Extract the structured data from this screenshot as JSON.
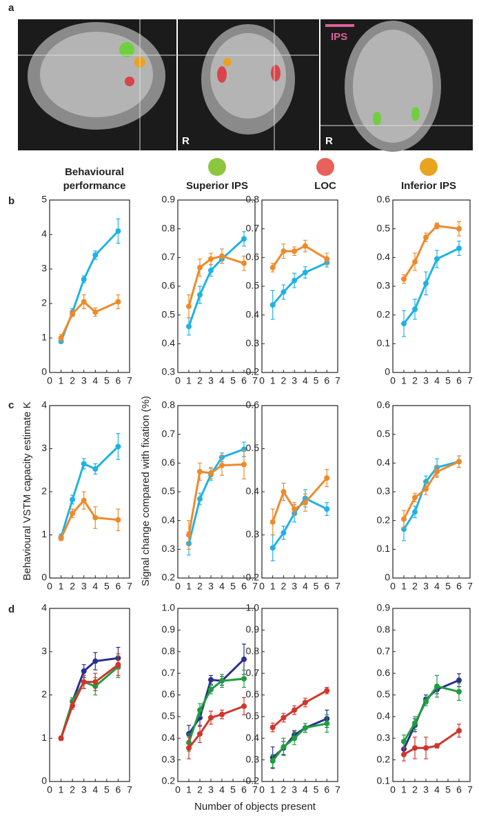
{
  "panel_labels": [
    "a",
    "b",
    "c",
    "d"
  ],
  "brain_labels": {
    "coronal": "R",
    "axial": "R",
    "ips": "IPS"
  },
  "column_headers": [
    "Behavioural\nperformance",
    "Superior IPS",
    "LOC",
    "Inferior IPS"
  ],
  "y_axis_labels": [
    "Behavioural VSTM capacity estimate K",
    "Signal change compared with fixation (%)"
  ],
  "x_axis_label": "Number of objects present",
  "chart_data": [
    {
      "type": "line",
      "x": [
        1,
        2,
        3,
        4,
        6
      ],
      "xlim": [
        0,
        7
      ],
      "xticks": [
        0,
        1,
        2,
        3,
        4,
        5,
        6,
        7
      ],
      "ylim": [
        0,
        5
      ],
      "yticks": [
        0,
        1,
        2,
        3,
        4,
        5
      ],
      "series": [
        {
          "color": "#1fb2e6",
          "values": [
            0.9,
            1.75,
            2.7,
            3.4,
            4.1
          ],
          "errors": [
            0.05,
            0.1,
            0.1,
            0.12,
            0.35
          ]
        },
        {
          "color": "#ee8a2a",
          "values": [
            1.0,
            1.7,
            2.05,
            1.75,
            2.05
          ],
          "errors": [
            0.1,
            0.08,
            0.2,
            0.12,
            0.2
          ]
        }
      ]
    },
    {
      "type": "line",
      "x": [
        1,
        2,
        3,
        4,
        6
      ],
      "xlim": [
        0,
        7
      ],
      "xticks": [
        0,
        1,
        2,
        3,
        4,
        5,
        6,
        7
      ],
      "ylim": [
        0.3,
        0.9
      ],
      "yticks": [
        0.3,
        0.4,
        0.5,
        0.6,
        0.7,
        0.8,
        0.9
      ],
      "series": [
        {
          "color": "#1fb2e6",
          "values": [
            0.46,
            0.57,
            0.655,
            0.695,
            0.765
          ],
          "errors": [
            0.03,
            0.03,
            0.02,
            0.015,
            0.025
          ]
        },
        {
          "color": "#ee8a2a",
          "values": [
            0.53,
            0.665,
            0.695,
            0.705,
            0.68
          ],
          "errors": [
            0.04,
            0.03,
            0.02,
            0.025,
            0.025
          ]
        }
      ]
    },
    {
      "type": "line",
      "x": [
        1,
        2,
        3,
        4,
        6
      ],
      "xlim": [
        0,
        7
      ],
      "xticks": [
        0,
        1,
        2,
        3,
        4,
        5,
        6,
        7
      ],
      "ylim": [
        0.2,
        0.8
      ],
      "yticks": [
        0.2,
        0.3,
        0.4,
        0.5,
        0.6,
        0.7,
        0.8
      ],
      "series": [
        {
          "color": "#1fb2e6",
          "values": [
            0.435,
            0.48,
            0.52,
            0.548,
            0.582
          ],
          "errors": [
            0.05,
            0.025,
            0.025,
            0.02,
            0.015
          ]
        },
        {
          "color": "#ee8a2a",
          "values": [
            0.565,
            0.622,
            0.622,
            0.64,
            0.595
          ],
          "errors": [
            0.015,
            0.025,
            0.015,
            0.02,
            0.02
          ]
        }
      ]
    },
    {
      "type": "line",
      "x": [
        1,
        2,
        3,
        4,
        6
      ],
      "xlim": [
        0,
        7
      ],
      "xticks": [
        0,
        1,
        2,
        3,
        4,
        5,
        6,
        7
      ],
      "ylim": [
        0,
        0.6
      ],
      "yticks": [
        0,
        0.1,
        0.2,
        0.3,
        0.4,
        0.5,
        0.6
      ],
      "series": [
        {
          "color": "#1fb2e6",
          "values": [
            0.17,
            0.22,
            0.31,
            0.395,
            0.432
          ],
          "errors": [
            0.045,
            0.035,
            0.04,
            0.03,
            0.025
          ]
        },
        {
          "color": "#ee8a2a",
          "values": [
            0.325,
            0.385,
            0.47,
            0.51,
            0.5
          ],
          "errors": [
            0.015,
            0.03,
            0.015,
            0.01,
            0.025
          ]
        }
      ]
    },
    {
      "type": "line",
      "x": [
        1,
        2,
        3,
        4,
        6
      ],
      "xlim": [
        0,
        7
      ],
      "xticks": [
        0,
        1,
        2,
        3,
        4,
        5,
        6,
        7
      ],
      "ylim": [
        0,
        4
      ],
      "yticks": [
        0,
        1,
        2,
        3,
        4
      ],
      "series": [
        {
          "color": "#1fb2e6",
          "values": [
            0.95,
            1.82,
            2.65,
            2.53,
            3.05
          ],
          "errors": [
            0.07,
            0.1,
            0.12,
            0.12,
            0.3
          ]
        },
        {
          "color": "#ee8a2a",
          "values": [
            0.92,
            1.5,
            1.8,
            1.4,
            1.35
          ],
          "errors": [
            0.05,
            0.1,
            0.2,
            0.25,
            0.25
          ]
        }
      ]
    },
    {
      "type": "line",
      "x": [
        1,
        2,
        3,
        4,
        6
      ],
      "xlim": [
        0,
        7
      ],
      "xticks": [
        0,
        1,
        2,
        3,
        4,
        5,
        6,
        7
      ],
      "ylim": [
        0.2,
        0.8
      ],
      "yticks": [
        0.2,
        0.3,
        0.4,
        0.5,
        0.6,
        0.7,
        0.8
      ],
      "series": [
        {
          "color": "#1fb2e6",
          "values": [
            0.32,
            0.475,
            0.56,
            0.62,
            0.648
          ],
          "errors": [
            0.04,
            0.02,
            0.02,
            0.015,
            0.025
          ]
        },
        {
          "color": "#ee8a2a",
          "values": [
            0.35,
            0.57,
            0.565,
            0.592,
            0.595
          ],
          "errors": [
            0.05,
            0.03,
            0.02,
            0.035,
            0.05
          ]
        }
      ]
    },
    {
      "type": "line",
      "x": [
        1,
        2,
        3,
        4,
        6
      ],
      "xlim": [
        0,
        7
      ],
      "xticks": [
        0,
        1,
        2,
        3,
        4,
        5,
        6,
        7
      ],
      "ylim": [
        0.2,
        0.6
      ],
      "yticks": [
        0.2,
        0.3,
        0.4,
        0.5,
        0.6
      ],
      "series": [
        {
          "color": "#1fb2e6",
          "values": [
            0.27,
            0.305,
            0.35,
            0.385,
            0.36
          ],
          "errors": [
            0.03,
            0.015,
            0.02,
            0.02,
            0.015
          ]
        },
        {
          "color": "#ee8a2a",
          "values": [
            0.33,
            0.4,
            0.36,
            0.375,
            0.432
          ],
          "errors": [
            0.03,
            0.02,
            0.015,
            0.02,
            0.02
          ]
        }
      ]
    },
    {
      "type": "line",
      "x": [
        1,
        2,
        3,
        4,
        6
      ],
      "xlim": [
        0,
        7
      ],
      "xticks": [
        0,
        1,
        2,
        3,
        4,
        5,
        6,
        7
      ],
      "ylim": [
        0,
        0.6
      ],
      "yticks": [
        0,
        0.1,
        0.2,
        0.3,
        0.4,
        0.5,
        0.6
      ],
      "series": [
        {
          "color": "#1fb2e6",
          "values": [
            0.17,
            0.23,
            0.335,
            0.385,
            0.405
          ],
          "errors": [
            0.04,
            0.02,
            0.02,
            0.03,
            0.02
          ]
        },
        {
          "color": "#ee8a2a",
          "values": [
            0.205,
            0.28,
            0.31,
            0.37,
            0.405
          ],
          "errors": [
            0.03,
            0.015,
            0.02,
            0.02,
            0.02
          ]
        }
      ]
    },
    {
      "type": "line",
      "x": [
        1,
        2,
        3,
        4,
        6
      ],
      "xlim": [
        0,
        7
      ],
      "xticks": [
        0,
        1,
        2,
        3,
        4,
        5,
        6,
        7
      ],
      "ylim": [
        0,
        4
      ],
      "yticks": [
        0,
        1,
        2,
        3,
        4
      ],
      "series": [
        {
          "color": "#2b2f8e",
          "values": [
            1.0,
            1.85,
            2.55,
            2.78,
            2.85
          ],
          "errors": [
            0.05,
            0.08,
            0.15,
            0.2,
            0.25
          ]
        },
        {
          "color": "#1e9e3e",
          "values": [
            1.0,
            1.85,
            2.3,
            2.2,
            2.65
          ],
          "errors": [
            0.05,
            0.08,
            0.15,
            0.2,
            0.25
          ]
        },
        {
          "color": "#d0352b",
          "values": [
            1.0,
            1.75,
            2.3,
            2.3,
            2.7
          ],
          "errors": [
            0.05,
            0.08,
            0.15,
            0.2,
            0.25
          ]
        }
      ]
    },
    {
      "type": "line",
      "x": [
        1,
        2,
        3,
        4,
        6
      ],
      "xlim": [
        0,
        7
      ],
      "xticks": [
        0,
        1,
        2,
        3,
        4,
        5,
        6,
        7
      ],
      "ylim": [
        0.2,
        1.0
      ],
      "yticks": [
        0.2,
        0.3,
        0.4,
        0.5,
        0.6,
        0.7,
        0.8,
        0.9,
        {
          "value": 1,
          "label": "1.0"
        }
      ],
      "series": [
        {
          "color": "#2b2f8e",
          "values": [
            0.42,
            0.495,
            0.67,
            0.665,
            0.765
          ],
          "errors": [
            0.04,
            0.04,
            0.02,
            0.02,
            0.07
          ]
        },
        {
          "color": "#1e9e3e",
          "values": [
            0.38,
            0.53,
            0.625,
            0.665,
            0.675
          ],
          "errors": [
            0.04,
            0.03,
            0.02,
            0.03,
            0.04
          ]
        },
        {
          "color": "#d0352b",
          "values": [
            0.355,
            0.42,
            0.495,
            0.51,
            0.548
          ],
          "errors": [
            0.05,
            0.04,
            0.03,
            0.02,
            0.04
          ]
        }
      ]
    },
    {
      "type": "line",
      "x": [
        1,
        2,
        3,
        4,
        6
      ],
      "xlim": [
        0,
        7
      ],
      "xticks": [
        0,
        1,
        2,
        3,
        4,
        5,
        6,
        7
      ],
      "ylim": [
        0.2,
        1.0
      ],
      "yticks": [
        0.2,
        0.3,
        0.4,
        0.5,
        0.6,
        0.7,
        0.8,
        0.9,
        {
          "value": 1,
          "label": "1.0"
        }
      ],
      "series": [
        {
          "color": "#2b2f8e",
          "values": [
            0.31,
            0.355,
            0.415,
            0.448,
            0.49
          ],
          "errors": [
            0.05,
            0.03,
            0.02,
            0.02,
            0.04
          ]
        },
        {
          "color": "#1e9e3e",
          "values": [
            0.295,
            0.36,
            0.4,
            0.448,
            0.468
          ],
          "errors": [
            0.03,
            0.04,
            0.03,
            0.02,
            0.04
          ]
        },
        {
          "color": "#d0352b",
          "values": [
            0.45,
            0.495,
            0.53,
            0.565,
            0.62
          ],
          "errors": [
            0.02,
            0.02,
            0.02,
            0.02,
            0.015
          ]
        }
      ]
    },
    {
      "type": "line",
      "x": [
        1,
        2,
        3,
        4,
        6
      ],
      "xlim": [
        0,
        7
      ],
      "xticks": [
        0,
        1,
        2,
        3,
        4,
        5,
        6,
        7
      ],
      "ylim": [
        0.1,
        0.9
      ],
      "yticks": [
        0.1,
        0.2,
        0.3,
        0.4,
        0.5,
        0.6,
        0.7,
        0.8,
        0.9
      ],
      "series": [
        {
          "color": "#2b2f8e",
          "values": [
            0.25,
            0.36,
            0.48,
            0.525,
            0.568
          ],
          "errors": [
            0.03,
            0.03,
            0.02,
            0.02,
            0.03
          ]
        },
        {
          "color": "#1e9e3e",
          "values": [
            0.285,
            0.37,
            0.47,
            0.54,
            0.515
          ],
          "errors": [
            0.03,
            0.03,
            0.02,
            0.05,
            0.04
          ]
        },
        {
          "color": "#d0352b",
          "values": [
            0.225,
            0.255,
            0.255,
            0.265,
            0.335
          ],
          "errors": [
            0.03,
            0.05,
            0.05,
            0.01,
            0.03
          ]
        }
      ]
    }
  ]
}
